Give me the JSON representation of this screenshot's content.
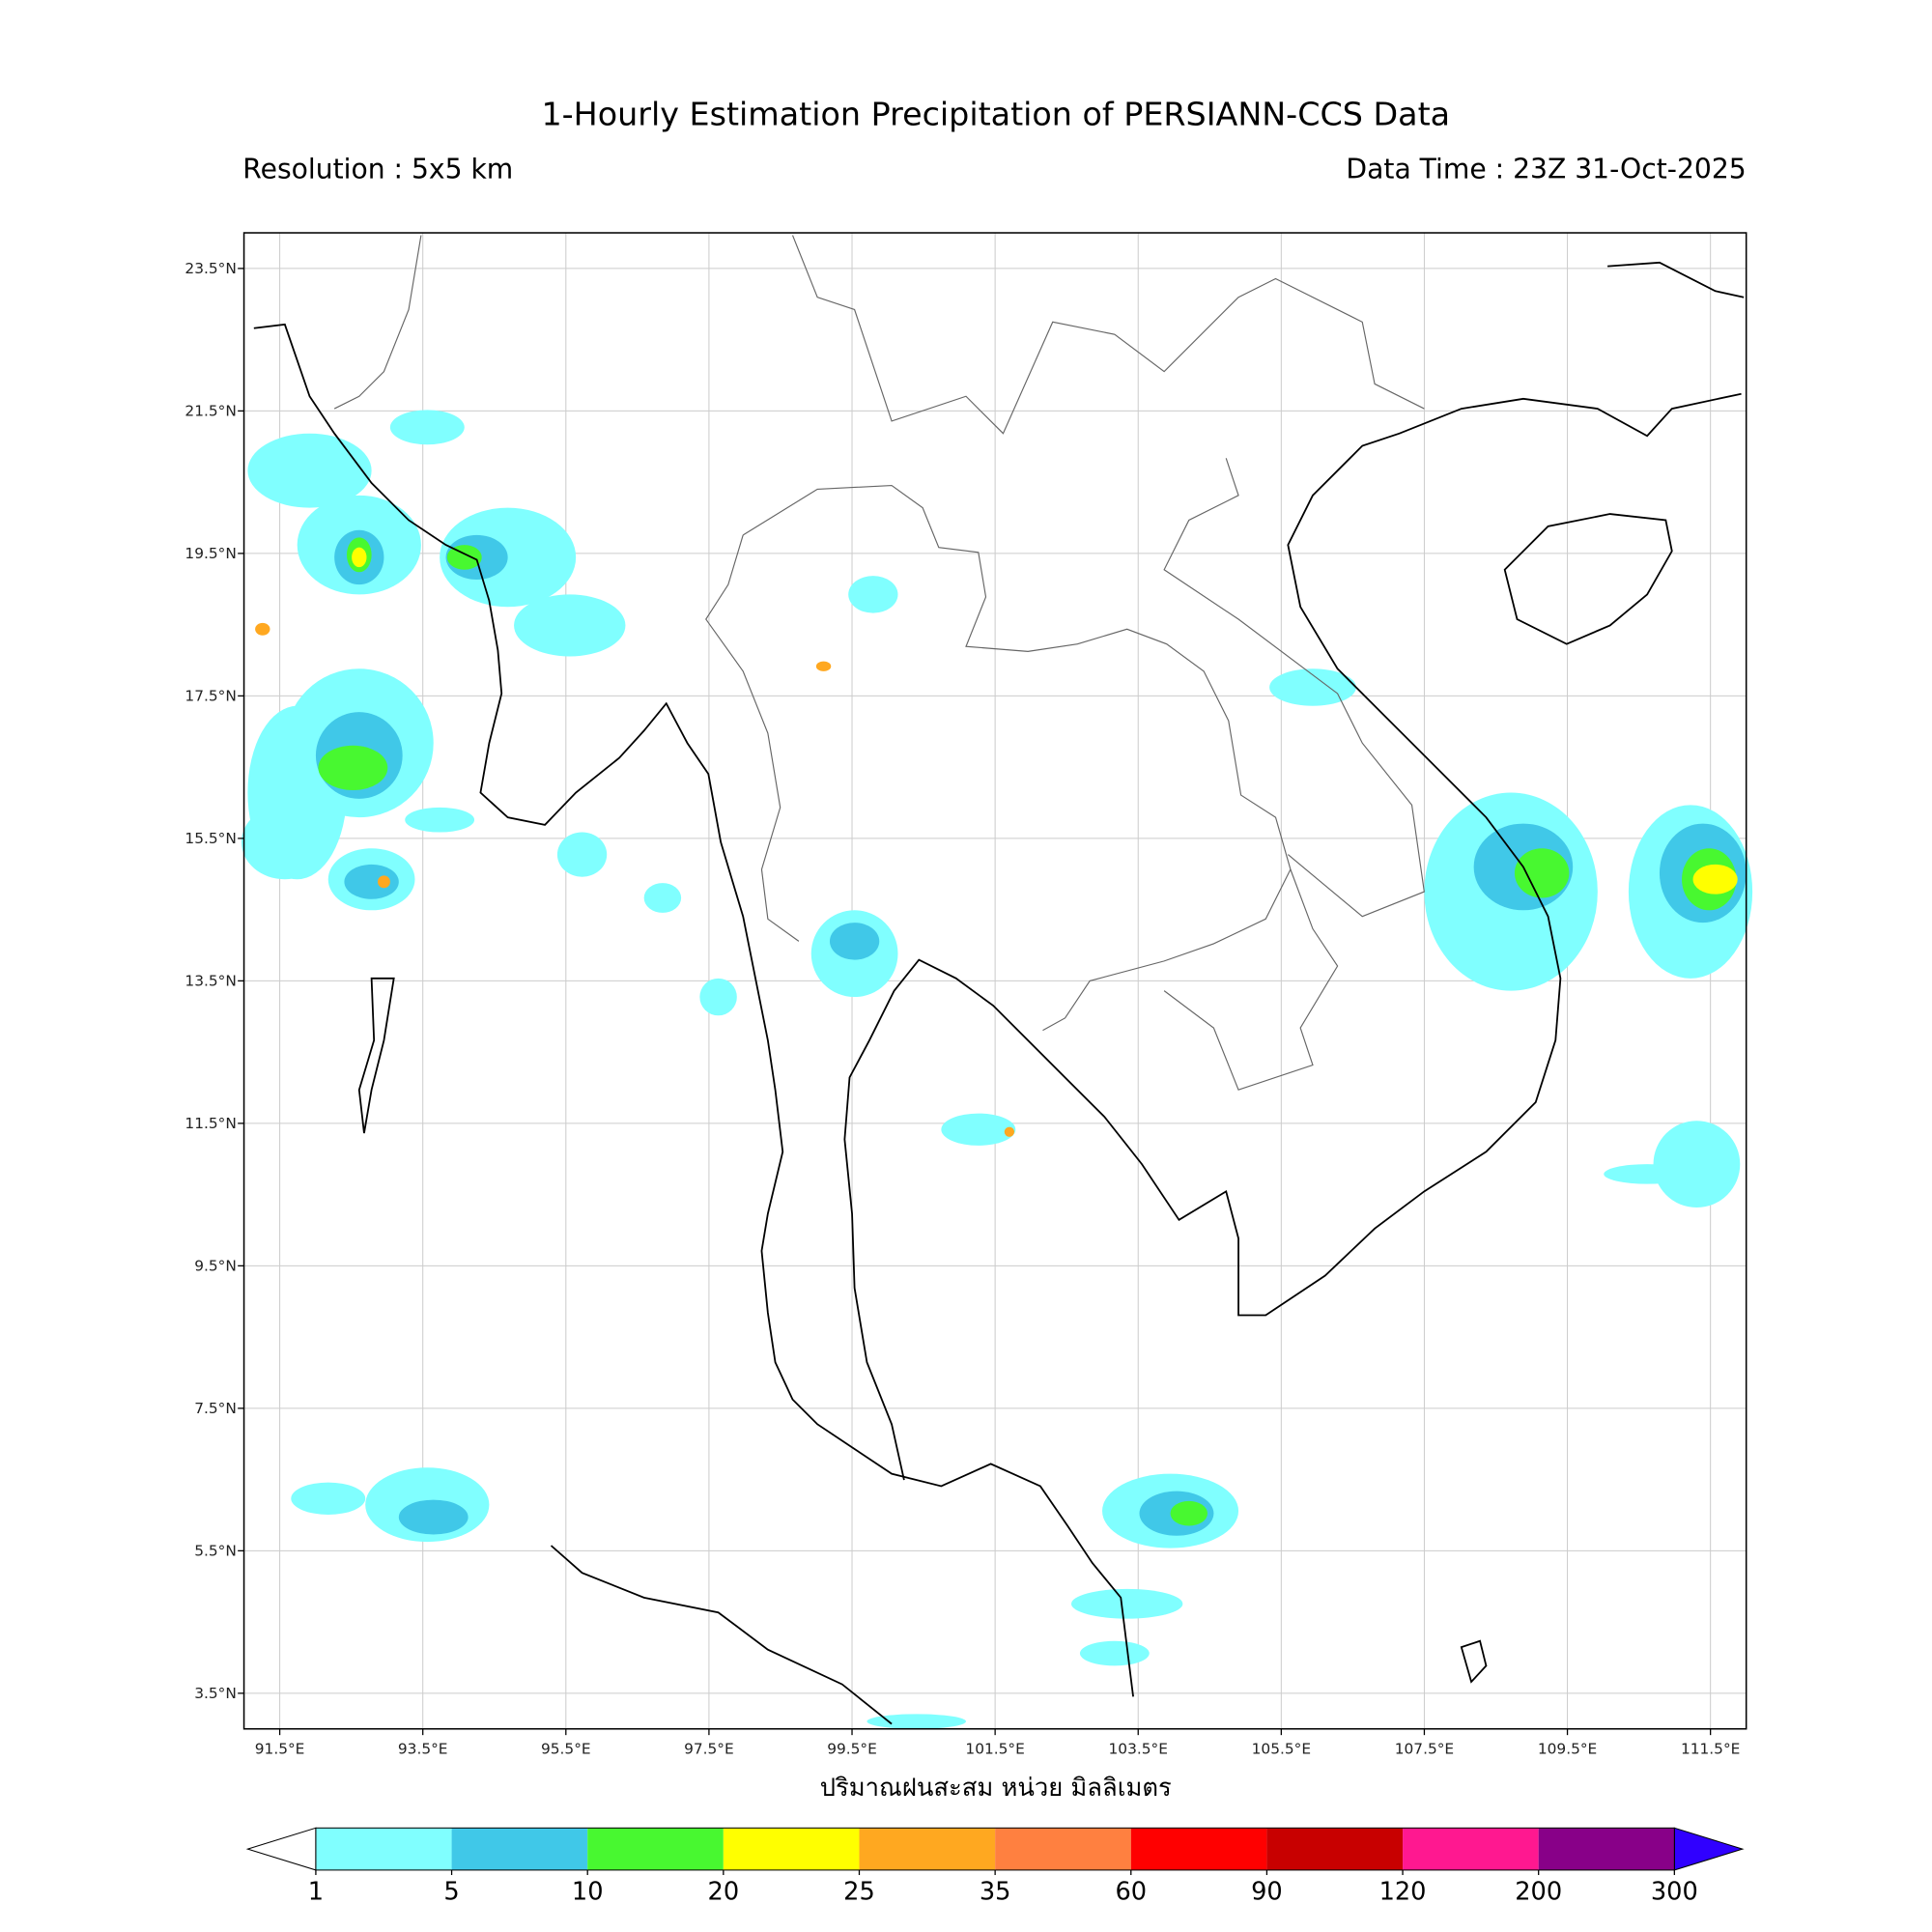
{
  "title": "1-Hourly Estimation Precipitation of PERSIANN-CCS Data",
  "resolution": "Resolution : 5x5 km",
  "data_time": "Data Time : 23Z 31-Oct-2025",
  "map": {
    "lon_range": [
      91,
      112
    ],
    "lat_range": [
      3,
      24
    ],
    "lon_ticks": [
      {
        "value": 91.5,
        "label": "91.5°E"
      },
      {
        "value": 93.5,
        "label": "93.5°E"
      },
      {
        "value": 95.5,
        "label": "95.5°E"
      },
      {
        "value": 97.5,
        "label": "97.5°E"
      },
      {
        "value": 99.5,
        "label": "99.5°E"
      },
      {
        "value": 101.5,
        "label": "101.5°E"
      },
      {
        "value": 103.5,
        "label": "103.5°E"
      },
      {
        "value": 105.5,
        "label": "105.5°E"
      },
      {
        "value": 107.5,
        "label": "107.5°E"
      },
      {
        "value": 109.5,
        "label": "109.5°E"
      },
      {
        "value": 111.5,
        "label": "111.5°E"
      }
    ],
    "lat_ticks": [
      {
        "value": 23.5,
        "label": "23.5°N"
      },
      {
        "value": 21.5,
        "label": "21.5°N"
      },
      {
        "value": 19.5,
        "label": "19.5°N"
      },
      {
        "value": 17.5,
        "label": "17.5°N"
      },
      {
        "value": 15.5,
        "label": "15.5°N"
      },
      {
        "value": 13.5,
        "label": "13.5°N"
      },
      {
        "value": 11.5,
        "label": "11.5°N"
      },
      {
        "value": 9.5,
        "label": "9.5°N"
      },
      {
        "value": 7.5,
        "label": "7.5°N"
      },
      {
        "value": 5.5,
        "label": "5.5°N"
      },
      {
        "value": 3.5,
        "label": "3.5°N"
      }
    ],
    "grid": true
  },
  "colorbar": {
    "label": "ปริมาณฝนสะสม หน่วย มิลลิเมตร",
    "bounds": [
      1,
      5,
      10,
      20,
      25,
      35,
      60,
      90,
      120,
      200,
      300
    ],
    "colors": [
      "#80ffff",
      "#40c8e8",
      "#48f830",
      "#ffff00",
      "#ffa820",
      "#ff8040",
      "#ff0000",
      "#c80000",
      "#ff1890",
      "#880088"
    ],
    "under_color": "#ffffff",
    "over_color": "#3000ff"
  }
}
